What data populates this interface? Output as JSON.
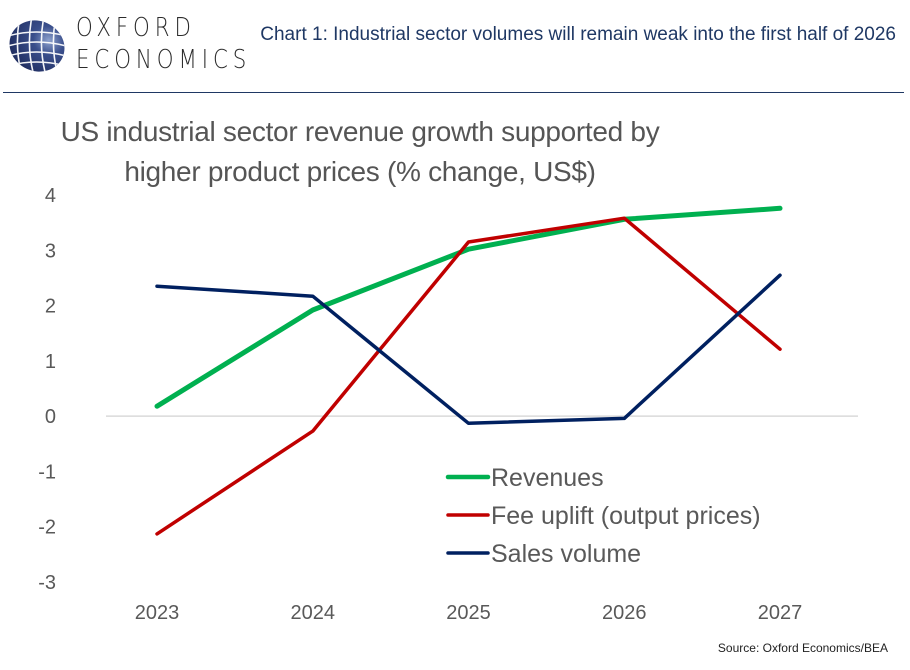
{
  "header": {
    "brand_line1": "OXFORD",
    "brand_line2": "ECONOMICS",
    "logo_icon": "globe-grid-icon",
    "chart_caption": "Chart 1: Industrial sector volumes will remain weak into the first half of 2026"
  },
  "source": "Source:  Oxford Economics/BEA",
  "colors": {
    "brand_navy": "#1f3864",
    "revenues": "#00b050",
    "fee_uplift": "#c00000",
    "sales_volume": "#002060",
    "axis_text": "#595959",
    "zero_line": "#d9d9d9"
  },
  "chart_data": {
    "type": "line",
    "title": "US industrial sector revenue growth supported by higher product prices (% change, US$)",
    "title_lines": [
      "US industrial sector revenue growth supported by",
      "higher product prices (% change, US$)"
    ],
    "xlabel": "",
    "ylabel": "",
    "categories": [
      "2023",
      "2024",
      "2025",
      "2026",
      "2027"
    ],
    "ylim": [
      -3,
      4
    ],
    "yticks": [
      "4",
      "3",
      "2",
      "1",
      "0",
      "-1",
      "-2",
      "-3"
    ],
    "ytick_values": [
      4,
      3,
      2,
      1,
      0,
      -1,
      -2,
      -3
    ],
    "grid": false,
    "zero_line": true,
    "legend_position": "bottom-center-inside",
    "series": [
      {
        "name": "Revenues",
        "color": "#00b050",
        "values": [
          0.18,
          1.92,
          3.02,
          3.56,
          3.76
        ]
      },
      {
        "name": "Fee uplift (output prices)",
        "color": "#c00000",
        "values": [
          -2.13,
          -0.27,
          3.15,
          3.58,
          1.21
        ]
      },
      {
        "name": "Sales volume",
        "color": "#002060",
        "values": [
          2.35,
          2.17,
          -0.13,
          -0.04,
          2.55
        ]
      }
    ]
  }
}
